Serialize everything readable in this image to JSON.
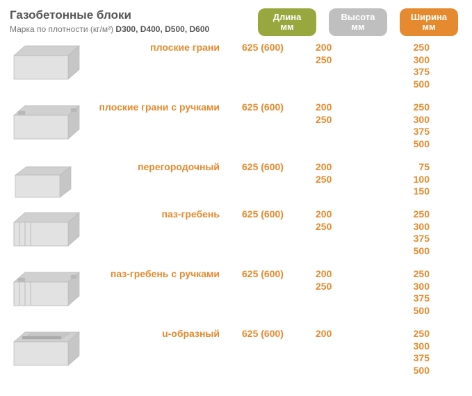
{
  "colors": {
    "olive": "#98a83f",
    "gray": "#bfbfbf",
    "orange": "#e58a2e",
    "label": "#e58a2e",
    "text": "#e58a2e",
    "block_fill": "#e2e2e2",
    "block_fill_top": "#d0d0d0",
    "block_fill_side": "#c6c6c6",
    "block_stroke": "#b8b8b8"
  },
  "header": {
    "title": "Газобетонные блоки",
    "subtitle_plain": "Марка по плотности (кг/м³) ",
    "subtitle_bold": "D300, D400, D500, D600",
    "pills": [
      {
        "l1": "Длина",
        "l2": "мм",
        "color": "#98a83f"
      },
      {
        "l1": "Высота",
        "l2": "мм",
        "color": "#bfbfbf"
      },
      {
        "l1": "Ширина",
        "l2": "мм",
        "color": "#e58a2e"
      }
    ]
  },
  "rows": [
    {
      "shape": "plain",
      "label": "плоские грани",
      "length": "625 (600)",
      "height": "200\n250",
      "width": "250\n300\n375\n500"
    },
    {
      "shape": "handles",
      "label": "плоские грани с ручками",
      "length": "625 (600)",
      "height": "200\n250",
      "width": "250\n300\n375\n500"
    },
    {
      "shape": "partition",
      "label": "перегородочный",
      "length": "625 (600)",
      "height": "200\n250",
      "width": "75\n100\n150",
      "short": true
    },
    {
      "shape": "tongue",
      "label": "паз-гребень",
      "length": "625 (600)",
      "height": "200\n250",
      "width": "250\n300\n375\n500"
    },
    {
      "shape": "tongue_handles",
      "label": "паз-гребень с ручками",
      "length": "625 (600)",
      "height": "200\n250",
      "width": "250\n300\n375\n500"
    },
    {
      "shape": "u",
      "label": "u-образный",
      "length": "625 (600)",
      "height": "200",
      "width": "250\n300\n375\n500"
    }
  ]
}
